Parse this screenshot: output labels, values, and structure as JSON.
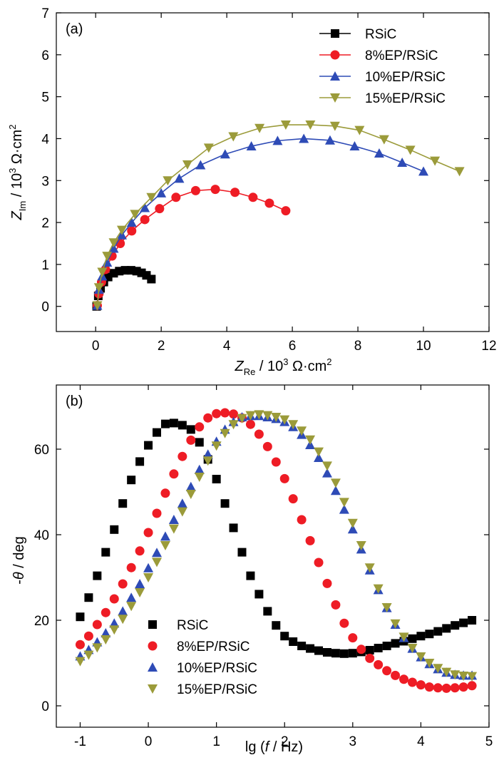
{
  "chart_data": [
    {
      "panel_label": "(a)",
      "type": "line",
      "xlabel": {
        "main": "Z",
        "sub": "Re",
        "rest": " / 10",
        "sup": "3",
        "unit": " Ω·cm",
        "unit_sup": "2"
      },
      "ylabel": {
        "main": "Z",
        "sub": "Im",
        "rest": " / 10",
        "sup": "3",
        "unit": " Ω·cm",
        "unit_sup": "2"
      },
      "xlim": [
        -1.2,
        12
      ],
      "ylim": [
        -0.6,
        7
      ],
      "xticks": [
        0,
        2,
        4,
        6,
        8,
        10,
        12
      ],
      "xtick_labels": [
        "0",
        "2",
        "4",
        "6",
        "8",
        "10",
        "12"
      ],
      "yticks": [
        0,
        1,
        2,
        3,
        4,
        5,
        6,
        7
      ],
      "ytick_labels": [
        "0",
        "1",
        "2",
        "3",
        "4",
        "5",
        "6",
        "7"
      ],
      "legend_position": "top-right",
      "series": [
        {
          "name": "RSiC",
          "marker": "square",
          "color": "#000000",
          "x": [
            0.03,
            0.08,
            0.15,
            0.25,
            0.38,
            0.55,
            0.72,
            0.9,
            1.08,
            1.25,
            1.4,
            1.55,
            1.7
          ],
          "y": [
            0.0,
            0.25,
            0.43,
            0.58,
            0.7,
            0.79,
            0.84,
            0.86,
            0.86,
            0.84,
            0.8,
            0.74,
            0.65
          ]
        },
        {
          "name": "8%EP/RSiC",
          "marker": "circle",
          "color": "#ee1c25",
          "x": [
            0.05,
            0.1,
            0.18,
            0.3,
            0.5,
            0.75,
            1.1,
            1.5,
            1.95,
            2.45,
            3.05,
            3.65,
            4.25,
            4.8,
            5.3,
            5.8
          ],
          "y": [
            0.02,
            0.3,
            0.58,
            0.88,
            1.2,
            1.5,
            1.8,
            2.07,
            2.33,
            2.6,
            2.76,
            2.79,
            2.72,
            2.6,
            2.46,
            2.28
          ]
        },
        {
          "name": "10%EP/RSiC",
          "marker": "triangle-up",
          "color": "#2e4bb6",
          "x": [
            0.05,
            0.1,
            0.2,
            0.35,
            0.55,
            0.8,
            1.1,
            1.5,
            2.0,
            2.55,
            3.2,
            3.95,
            4.75,
            5.55,
            6.35,
            7.15,
            7.9,
            8.65,
            9.35,
            10.0
          ],
          "y": [
            0.02,
            0.4,
            0.72,
            1.05,
            1.38,
            1.7,
            2.0,
            2.35,
            2.7,
            3.05,
            3.37,
            3.63,
            3.82,
            3.95,
            4.0,
            3.96,
            3.82,
            3.65,
            3.43,
            3.22
          ]
        },
        {
          "name": "15%EP/RSiC",
          "marker": "triangle-down",
          "color": "#9b9b3a",
          "x": [
            0.05,
            0.1,
            0.2,
            0.35,
            0.55,
            0.8,
            1.2,
            1.7,
            2.2,
            2.8,
            3.45,
            4.2,
            5.0,
            5.8,
            6.55,
            7.3,
            8.05,
            8.8,
            9.6,
            10.35,
            11.1
          ],
          "y": [
            0.02,
            0.45,
            0.82,
            1.2,
            1.52,
            1.82,
            2.2,
            2.6,
            3.0,
            3.38,
            3.78,
            4.05,
            4.25,
            4.33,
            4.33,
            4.3,
            4.2,
            3.98,
            3.73,
            3.47,
            3.22
          ]
        }
      ]
    },
    {
      "panel_label": "(b)",
      "type": "scatter",
      "xlabel": {
        "pre": "lg (",
        "var": "f",
        "post": " / Hz)"
      },
      "ylabel": {
        "pre": "-",
        "var": "θ",
        "post": " / deg"
      },
      "xlim": [
        -1.35,
        5
      ],
      "ylim": [
        -5,
        75
      ],
      "xticks": [
        -1,
        0,
        1,
        2,
        3,
        4,
        5
      ],
      "xtick_labels": [
        "-1",
        "0",
        "1",
        "2",
        "3",
        "4",
        "5"
      ],
      "yticks": [
        0,
        20,
        40,
        60
      ],
      "ytick_labels": [
        "0",
        "20",
        "40",
        "60"
      ],
      "legend_position": "bottom-left",
      "series": [
        {
          "name": "RSiC",
          "marker": "square",
          "color": "#000000",
          "x": [
            -1.0,
            -0.875,
            -0.75,
            -0.625,
            -0.5,
            -0.375,
            -0.25,
            -0.125,
            0.0,
            0.125,
            0.25,
            0.375,
            0.5,
            0.625,
            0.75,
            0.875,
            1.0,
            1.125,
            1.25,
            1.375,
            1.5,
            1.625,
            1.75,
            1.875,
            2.0,
            2.125,
            2.25,
            2.375,
            2.5,
            2.625,
            2.75,
            2.875,
            3.0,
            3.125,
            3.25,
            3.375,
            3.5,
            3.625,
            3.75,
            3.875,
            4.0,
            4.125,
            4.25,
            4.375,
            4.5,
            4.625,
            4.75
          ],
          "y": [
            20.8,
            25.3,
            30.4,
            35.9,
            41.2,
            47.3,
            52.8,
            57.1,
            60.9,
            63.9,
            65.9,
            66.1,
            65.6,
            64.6,
            61.6,
            57.6,
            53.0,
            47.3,
            41.6,
            35.9,
            30.4,
            26.1,
            22.1,
            18.8,
            16.3,
            15.0,
            14.0,
            13.4,
            12.9,
            12.5,
            12.3,
            12.2,
            12.3,
            12.6,
            13.0,
            13.5,
            14.0,
            14.6,
            15.1,
            15.7,
            16.3,
            16.8,
            17.4,
            18.1,
            18.8,
            19.4,
            20.0
          ]
        },
        {
          "name": "8%EP/RSiC",
          "marker": "circle",
          "color": "#ee1c25",
          "x": [
            -1.0,
            -0.875,
            -0.75,
            -0.625,
            -0.5,
            -0.375,
            -0.25,
            -0.125,
            0.0,
            0.125,
            0.25,
            0.375,
            0.5,
            0.625,
            0.75,
            0.875,
            1.0,
            1.125,
            1.25,
            1.375,
            1.5,
            1.625,
            1.75,
            1.875,
            2.0,
            2.125,
            2.25,
            2.375,
            2.5,
            2.625,
            2.75,
            2.875,
            3.0,
            3.125,
            3.25,
            3.375,
            3.5,
            3.625,
            3.75,
            3.875,
            4.0,
            4.125,
            4.25,
            4.375,
            4.5,
            4.625,
            4.75
          ],
          "y": [
            14.3,
            16.3,
            19.0,
            21.8,
            25.0,
            28.5,
            32.3,
            36.2,
            40.5,
            45.0,
            49.7,
            54.2,
            58.3,
            62.1,
            65.2,
            67.3,
            68.3,
            68.5,
            68.2,
            67.3,
            65.8,
            63.5,
            60.6,
            57.0,
            53.1,
            48.4,
            43.5,
            38.6,
            33.5,
            28.6,
            23.6,
            19.3,
            15.9,
            13.2,
            11.1,
            9.6,
            8.2,
            7.1,
            6.2,
            5.5,
            4.9,
            4.4,
            4.2,
            4.1,
            4.2,
            4.4,
            4.7
          ]
        },
        {
          "name": "10%EP/RSiC",
          "marker": "triangle-up",
          "color": "#2e4bb6",
          "x": [
            -1.0,
            -0.875,
            -0.75,
            -0.625,
            -0.5,
            -0.375,
            -0.25,
            -0.125,
            0.0,
            0.125,
            0.25,
            0.375,
            0.5,
            0.625,
            0.75,
            0.875,
            1.0,
            1.125,
            1.25,
            1.375,
            1.5,
            1.625,
            1.75,
            1.875,
            2.0,
            2.125,
            2.25,
            2.375,
            2.5,
            2.625,
            2.75,
            2.875,
            3.0,
            3.125,
            3.25,
            3.375,
            3.5,
            3.625,
            3.75,
            3.875,
            4.0,
            4.125,
            4.25,
            4.375,
            4.5,
            4.625,
            4.75
          ],
          "y": [
            11.6,
            13.1,
            14.9,
            17.0,
            19.3,
            22.1,
            25.3,
            28.5,
            32.2,
            35.8,
            39.6,
            43.5,
            47.3,
            51.2,
            55.2,
            58.8,
            61.8,
            64.6,
            66.4,
            67.5,
            67.8,
            67.8,
            67.5,
            67.1,
            66.4,
            65.2,
            63.4,
            61.0,
            58.0,
            54.4,
            50.3,
            45.9,
            41.3,
            36.6,
            31.7,
            27.1,
            22.9,
            19.0,
            15.9,
            13.4,
            11.4,
            9.8,
            8.6,
            7.8,
            7.3,
            7.1,
            7.1
          ]
        },
        {
          "name": "15%EP/RSiC",
          "marker": "triangle-down",
          "color": "#9b9b3a",
          "x": [
            -1.0,
            -0.875,
            -0.75,
            -0.625,
            -0.5,
            -0.375,
            -0.25,
            -0.125,
            0.0,
            0.125,
            0.25,
            0.375,
            0.5,
            0.625,
            0.75,
            0.875,
            1.0,
            1.125,
            1.25,
            1.375,
            1.5,
            1.625,
            1.75,
            1.875,
            2.0,
            2.125,
            2.25,
            2.375,
            2.5,
            2.625,
            2.75,
            2.875,
            3.0,
            3.125,
            3.25,
            3.375,
            3.5,
            3.625,
            3.75,
            3.875,
            4.0,
            4.125,
            4.25,
            4.375,
            4.5,
            4.625,
            4.75
          ],
          "y": [
            10.4,
            11.9,
            13.6,
            15.5,
            17.8,
            20.3,
            23.3,
            26.5,
            30.0,
            33.6,
            37.5,
            41.4,
            45.4,
            49.5,
            53.5,
            57.3,
            60.8,
            63.7,
            65.8,
            67.2,
            67.9,
            68.1,
            67.9,
            67.5,
            66.9,
            65.8,
            64.3,
            62.2,
            59.4,
            56.1,
            52.1,
            47.6,
            42.7,
            37.5,
            32.3,
            27.4,
            23.0,
            19.2,
            16.1,
            13.5,
            11.5,
            10.0,
            8.8,
            7.9,
            7.3,
            7.0,
            6.9
          ]
        }
      ]
    }
  ]
}
